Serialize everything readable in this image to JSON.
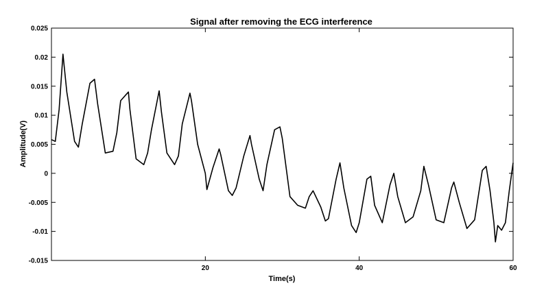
{
  "chart_data": {
    "type": "line",
    "title": "Signal after removing the ECG interference",
    "xlabel": "Time(s)",
    "ylabel": "Amplitude(V)",
    "xlim": [
      0,
      60
    ],
    "ylim": [
      -0.015,
      0.025
    ],
    "xticks": [
      20,
      40,
      60
    ],
    "xtick_labels": [
      "20",
      "40",
      "60"
    ],
    "yticks": [
      -0.015,
      -0.01,
      -0.005,
      0,
      0.005,
      0.01,
      0.015,
      0.02,
      0.025
    ],
    "ytick_labels": [
      "-0.015",
      "-0.01",
      "-0.005",
      "0",
      "0.005",
      "0.01",
      "0.015",
      "0.02",
      "0.025"
    ],
    "grid": false,
    "legend": false,
    "series": [
      {
        "color": "#000000",
        "x": [
          0.0,
          0.5,
          1.0,
          1.5,
          2.0,
          3.0,
          3.5,
          4.0,
          5.0,
          5.6,
          6.0,
          7.0,
          8.0,
          8.5,
          9.0,
          10.0,
          10.2,
          11.0,
          12.0,
          12.5,
          13.0,
          14.0,
          14.3,
          15.0,
          16.0,
          16.5,
          17.0,
          18.0,
          18.2,
          19.0,
          20.0,
          20.2,
          21.0,
          21.8,
          22.0,
          23.0,
          23.5,
          24.0,
          25.0,
          25.8,
          26.0,
          27.0,
          27.5,
          28.0,
          29.0,
          29.7,
          30.0,
          31.0,
          32.0,
          33.0,
          33.5,
          34.0,
          35.0,
          35.6,
          36.0,
          37.0,
          37.5,
          38.0,
          39.0,
          39.6,
          40.0,
          41.0,
          41.5,
          42.0,
          43.0,
          44.0,
          44.5,
          45.0,
          46.0,
          47.0,
          48.0,
          48.4,
          49.0,
          50.0,
          51.0,
          52.0,
          52.3,
          53.0,
          54.0,
          55.0,
          56.0,
          56.5,
          57.0,
          57.5,
          57.7,
          58.0,
          58.5,
          59.0,
          59.5,
          60.0
        ],
        "y": [
          0.0058,
          0.0055,
          0.011,
          0.0205,
          0.014,
          0.0055,
          0.0045,
          0.0085,
          0.0155,
          0.0162,
          0.012,
          0.0035,
          0.0038,
          0.007,
          0.0125,
          0.014,
          0.011,
          0.0025,
          0.0015,
          0.0035,
          0.0075,
          0.0142,
          0.0105,
          0.0035,
          0.0015,
          0.003,
          0.0085,
          0.0138,
          0.0125,
          0.005,
          0.0,
          -0.0028,
          0.001,
          0.0042,
          0.0032,
          -0.003,
          -0.0038,
          -0.0025,
          0.003,
          0.0065,
          0.005,
          -0.001,
          -0.003,
          0.0015,
          0.0075,
          0.008,
          0.006,
          -0.004,
          -0.0055,
          -0.006,
          -0.004,
          -0.003,
          -0.0058,
          -0.0082,
          -0.0078,
          -0.001,
          0.0018,
          -0.0025,
          -0.009,
          -0.0102,
          -0.0085,
          -0.001,
          -0.0005,
          -0.0055,
          -0.0085,
          -0.002,
          0.0,
          -0.004,
          -0.0085,
          -0.0075,
          -0.003,
          0.0012,
          -0.002,
          -0.008,
          -0.0085,
          -0.0025,
          -0.0015,
          -0.005,
          -0.0095,
          -0.008,
          0.0005,
          0.0012,
          -0.003,
          -0.0085,
          -0.0118,
          -0.009,
          -0.0098,
          -0.0085,
          -0.003,
          0.0018
        ]
      }
    ]
  }
}
